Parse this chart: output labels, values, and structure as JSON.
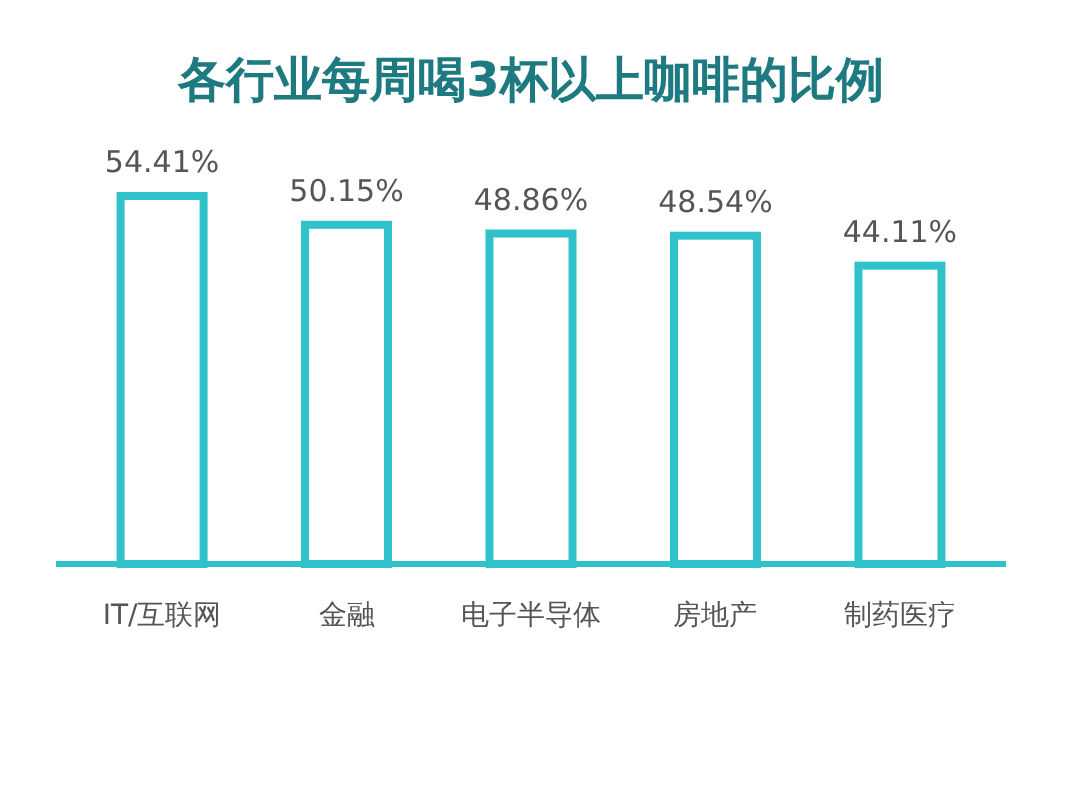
{
  "chart_data": {
    "type": "bar",
    "title": "各行业每周喝3杯以上咖啡的比例",
    "categories": [
      "IT/互联网",
      "金融",
      "电子半导体",
      "房地产",
      "制药医疗"
    ],
    "values": [
      54.41,
      50.15,
      48.86,
      48.54,
      44.11
    ],
    "color": "#2fc2cb",
    "value_labels": [
      "54.41%",
      "50.15%",
      "48.86%",
      "48.54%",
      "44.11%"
    ]
  }
}
